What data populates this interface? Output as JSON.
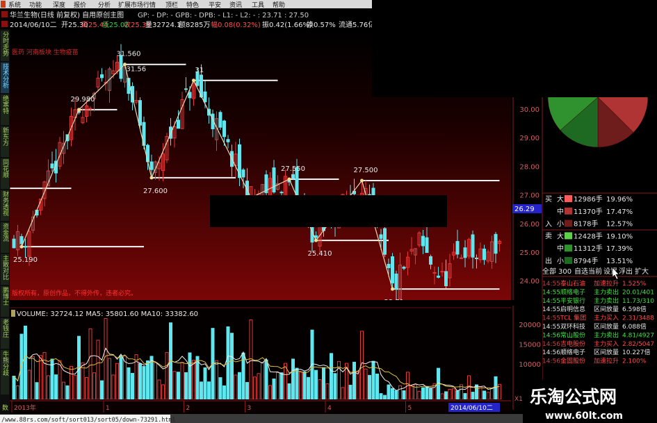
{
  "menu": [
    "系统",
    "功能",
    "深度",
    "报价",
    "分析",
    "扩展市场行情",
    "顶栏",
    "特色",
    "平安",
    "资讯",
    "工具",
    "帮助"
  ],
  "header": {
    "title": "华兰生物(日线 前复权) 自用原创主图",
    "indicators": "GP: - DP: - GPB: - DPB: - L1: - L2: -   : 23.71  : 27.50",
    "date": "2014/06/10二",
    "open": "开25.30",
    "high": "高25.44",
    "low": "低25.02",
    "close": "收25.38",
    "volume": "量32724.1",
    "amount": "额8285万",
    "change": "幅0.08(0.32%)",
    "amplitude": "振0.42(1.66%)",
    "turnover": "换0.57%",
    "float": "流通5.76亿"
  },
  "side_tabs": [
    "分时走势",
    "技术分析",
    "绝寒特",
    "新东方",
    "同花顺",
    "财务透视",
    "资金流",
    "主散对比",
    "鹏博士",
    "老钱庄",
    "牛熊分歧",
    "数"
  ],
  "chart_notes": {
    "sector": "医药 河南板块 生物疫苗",
    "copyright": "版权所有，原创作品，不得外传，违者必究。"
  },
  "chart_data": {
    "type": "candlestick",
    "price_ticks": [
      "30.00",
      "29.00",
      "28.00",
      "27.00",
      "26.00",
      "25.00",
      "24.00"
    ],
    "current_price_tag": "26.29",
    "pivots": [
      {
        "i": 0,
        "price": 25.6,
        "label": ""
      },
      {
        "i": 2,
        "price": 25.19,
        "label": "25.190",
        "kind": "low"
      },
      {
        "i": 17,
        "price": 29.98,
        "label": "29.980",
        "kind": "high"
      },
      {
        "i": 29,
        "price": 31.56,
        "label": "31.560",
        "label2": "31.56",
        "kind": "high"
      },
      {
        "i": 36,
        "price": 27.6,
        "label": "27.600",
        "kind": "low"
      },
      {
        "i": 47,
        "price": 31.0,
        "label": "31",
        "kind": "high"
      },
      {
        "i": 62,
        "price": 26.9,
        "label": "",
        "kind": "low"
      },
      {
        "i": 72,
        "price": 27.55,
        "label": "27.550",
        "kind": "high"
      },
      {
        "i": 79,
        "price": 25.41,
        "label": "25.410",
        "kind": "low"
      },
      {
        "i": 91,
        "price": 27.5,
        "label": "27.500",
        "kind": "high"
      },
      {
        "i": 99,
        "price": 23.71,
        "label": "23.71",
        "label2": "23.710",
        "kind": "low"
      },
      {
        "i": 106,
        "price": 25.3,
        "label": ""
      },
      {
        "i": 112,
        "price": 24.0,
        "label": ""
      },
      {
        "i": 118,
        "price": 25.2,
        "label": ""
      },
      {
        "i": 122,
        "price": 24.7,
        "label": ""
      },
      {
        "i": 127,
        "price": 25.38,
        "label": ""
      }
    ],
    "levels": [
      {
        "price": 29.98,
        "from": 17,
        "to": 27
      },
      {
        "price": 31.56,
        "from": 29,
        "to": 45
      },
      {
        "price": 31.0,
        "from": 47,
        "to": 69
      },
      {
        "price": 27.6,
        "from": 36,
        "to": 58
      },
      {
        "price": 27.55,
        "from": 72,
        "to": 85
      },
      {
        "price": 27.5,
        "from": 91,
        "to": 127
      },
      {
        "price": 25.41,
        "from": 79,
        "to": 98
      },
      {
        "price": 25.19,
        "from": 2,
        "to": 34
      },
      {
        "price": 23.71,
        "from": 99,
        "to": 127
      },
      {
        "price": 27.23,
        "from": -1,
        "to": 15
      }
    ],
    "volume": {
      "legend": "VOLUME: 32724.12  MA5: 35801.60  MA10: 33382.60",
      "ticks": [
        "20000",
        "15000",
        "10000"
      ],
      "unit": "X10"
    },
    "x_ticks": [
      {
        "label": "2013年",
        "i": 0
      },
      {
        "label": "1",
        "i": 24
      },
      {
        "label": "2",
        "i": 45
      },
      {
        "label": "3",
        "i": 61
      },
      {
        "label": "4",
        "i": 82
      },
      {
        "label": "5",
        "i": 103
      }
    ],
    "x_current": "2014/06/10二"
  },
  "money_flow": {
    "buy_label": [
      "买",
      "入"
    ],
    "sell_label": [
      "卖",
      "出"
    ],
    "rows": [
      {
        "side": "buy",
        "size": "大",
        "amount": "12986手",
        "pct": 19.96,
        "pct_text": "19.96%",
        "color": "#ff5a5a"
      },
      {
        "side": "buy",
        "size": "中",
        "amount": "11370手",
        "pct": 17.47,
        "pct_text": "17.47%",
        "color": "#b03434"
      },
      {
        "side": "buy",
        "size": "小",
        "amount": "8178手",
        "pct": 12.57,
        "pct_text": "12.57%",
        "color": "#6e1c1c"
      },
      {
        "side": "sell",
        "size": "大",
        "amount": "12428手",
        "pct": 19.1,
        "pct_text": "19.10%",
        "color": "#5fd04a"
      },
      {
        "side": "sell",
        "size": "中",
        "amount": "11312手",
        "pct": 17.39,
        "pct_text": "17.39%",
        "color": "#2f922f"
      },
      {
        "side": "sell",
        "size": "小",
        "amount": "8794手",
        "pct": 13.51,
        "pct_text": "13.51%",
        "color": "#1f6a22"
      }
    ]
  },
  "radar_tabs": [
    "全部",
    "300",
    "自选",
    "当前",
    "设置",
    "浮出",
    "扩大"
  ],
  "radar": [
    {
      "time": "14:55",
      "name": "泰山石油",
      "event": "加速拉升",
      "value": "1.525%",
      "tone": "red"
    },
    {
      "time": "14:55",
      "name": "顺络电子",
      "event": "主力卖出",
      "value": "20.01/401",
      "tone": "green"
    },
    {
      "time": "14:55",
      "name": "平安银行",
      "event": "主力卖出",
      "value": "11.73/310",
      "tone": "green"
    },
    {
      "time": "14:55",
      "name": "启明信息",
      "event": "区间放量",
      "value": "6.598倍",
      "tone": "white"
    },
    {
      "time": "14:55",
      "name": "TCL 集团",
      "event": "主力买入",
      "value": "2.31/3488",
      "tone": "red"
    },
    {
      "time": "14:55",
      "name": "双环科技",
      "event": "区间放量",
      "value": "6.088倍",
      "tone": "white"
    },
    {
      "time": "14:56",
      "name": "常山股份",
      "event": "主力卖出",
      "value": "4.81/4927",
      "tone": "green"
    },
    {
      "time": "14:56",
      "name": "吉电股份",
      "event": "主力买入",
      "value": "2.82/5047",
      "tone": "red"
    },
    {
      "time": "14:56",
      "name": "顺络电子",
      "event": "区间放量",
      "value": "10.227倍",
      "tone": "white"
    },
    {
      "time": "14:56",
      "name": "金固股份",
      "event": "加速拉升",
      "value": "2.100%",
      "tone": "red"
    }
  ],
  "watermark": {
    "name": "乐淘公式网",
    "url": "www.60lt.com"
  },
  "status_bar": {
    "url": "/www.88rs.com/soft/sort013/sort05/down-73291.html"
  },
  "colors": {
    "up": "#e03a3a",
    "down": "#5fe6ee",
    "bg_top": "#000000",
    "bg_bottom": "#7a0606",
    "accent_blue": "#2424c8"
  }
}
